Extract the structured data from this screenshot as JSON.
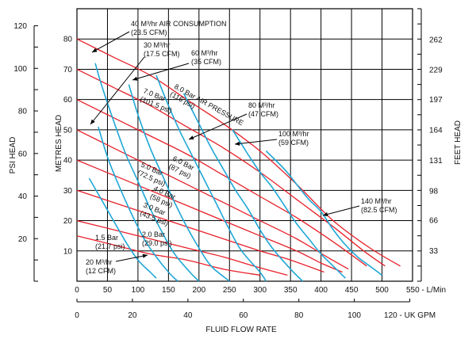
{
  "chart_data": {
    "type": "line",
    "title": "",
    "xlabel": "FLUID FLOW RATE",
    "ylabel_left_outer": "PSI HEAD",
    "ylabel_left_inner": "METRES HEAD",
    "ylabel_right": "FEET HEAD",
    "x_primary": {
      "ticks": [
        "0",
        "50",
        "100",
        "150",
        "200",
        "250",
        "300",
        "350",
        "400",
        "450",
        "500",
        "550 - L/Min"
      ],
      "range": [
        0,
        550
      ]
    },
    "x_secondary": {
      "ticks": [
        "0",
        "20",
        "40",
        "60",
        "80",
        "100",
        "120 - UK GPM"
      ],
      "values": [
        0,
        20,
        40,
        60,
        80,
        100,
        120
      ]
    },
    "y_metres": {
      "ticks": [
        "10",
        "20",
        "30",
        "40",
        "50",
        "60",
        "70",
        "80"
      ],
      "range": [
        0,
        90
      ]
    },
    "y_psi": {
      "ticks": [
        "20",
        "40",
        "60",
        "80",
        "100",
        "120"
      ],
      "values": [
        20,
        40,
        60,
        80,
        100,
        120
      ]
    },
    "y_feet": {
      "ticks": [
        "33",
        "66",
        "98",
        "131",
        "164",
        "197",
        "229",
        "262"
      ],
      "values": [
        33,
        66,
        98,
        131,
        164,
        197,
        229,
        262
      ]
    },
    "grid": true,
    "pressure_color": "#e8202a",
    "air_color": "#1fa7d6",
    "pressure_series": [
      {
        "points": [
          [
            0,
            80
          ],
          [
            60,
            74
          ],
          [
            120,
            68
          ],
          [
            180,
            60
          ],
          [
            240,
            52
          ],
          [
            300,
            43
          ],
          [
            360,
            32
          ],
          [
            420,
            20
          ],
          [
            480,
            11
          ],
          [
            530,
            5
          ]
        ]
      },
      {
        "points": [
          [
            0,
            70
          ],
          [
            60,
            64
          ],
          [
            120,
            58
          ],
          [
            180,
            51
          ],
          [
            240,
            44
          ],
          [
            300,
            36
          ],
          [
            360,
            27
          ],
          [
            420,
            18
          ],
          [
            470,
            10
          ],
          [
            505,
            5
          ]
        ]
      },
      {
        "points": [
          [
            0,
            60
          ],
          [
            60,
            54
          ],
          [
            120,
            48
          ],
          [
            180,
            42
          ],
          [
            240,
            35
          ],
          [
            300,
            28
          ],
          [
            360,
            21
          ],
          [
            420,
            13
          ],
          [
            475,
            5
          ]
        ]
      },
      {
        "points": [
          [
            0,
            50
          ],
          [
            60,
            44
          ],
          [
            120,
            38
          ],
          [
            180,
            32
          ],
          [
            240,
            26
          ],
          [
            300,
            20
          ],
          [
            360,
            14
          ],
          [
            410,
            8
          ],
          [
            445,
            4
          ]
        ]
      },
      {
        "points": [
          [
            0,
            40
          ],
          [
            60,
            35
          ],
          [
            120,
            30
          ],
          [
            180,
            25
          ],
          [
            240,
            20
          ],
          [
            300,
            15
          ],
          [
            360,
            10
          ],
          [
            400,
            6
          ],
          [
            435,
            3
          ]
        ]
      },
      {
        "points": [
          [
            0,
            30
          ],
          [
            60,
            26
          ],
          [
            120,
            22
          ],
          [
            180,
            18
          ],
          [
            240,
            14
          ],
          [
            300,
            10
          ],
          [
            350,
            7
          ],
          [
            405,
            3
          ]
        ]
      },
      {
        "points": [
          [
            0,
            20
          ],
          [
            60,
            17
          ],
          [
            120,
            14
          ],
          [
            180,
            11
          ],
          [
            240,
            8
          ],
          [
            290,
            5
          ],
          [
            345,
            2
          ]
        ]
      },
      {
        "points": [
          [
            0,
            15
          ],
          [
            60,
            12
          ],
          [
            120,
            9
          ],
          [
            180,
            7
          ],
          [
            240,
            4
          ],
          [
            300,
            2
          ]
        ]
      }
    ],
    "air_series": [
      {
        "points": [
          [
            20,
            34
          ],
          [
            40,
            27
          ],
          [
            60,
            20
          ],
          [
            80,
            13
          ],
          [
            100,
            7
          ],
          [
            120,
            3
          ],
          [
            130,
            1
          ]
        ]
      },
      {
        "points": [
          [
            35,
            51
          ],
          [
            50,
            41
          ],
          [
            70,
            31
          ],
          [
            90,
            22
          ],
          [
            110,
            14
          ],
          [
            130,
            8
          ],
          [
            150,
            3
          ],
          [
            165,
            0
          ]
        ]
      },
      {
        "points": [
          [
            30,
            72
          ],
          [
            40,
            65
          ],
          [
            60,
            53
          ],
          [
            80,
            42
          ],
          [
            100,
            33
          ],
          [
            120,
            24
          ],
          [
            140,
            16
          ],
          [
            160,
            9
          ],
          [
            185,
            3
          ],
          [
            200,
            0
          ]
        ]
      },
      {
        "points": [
          [
            85,
            65
          ],
          [
            100,
            55
          ],
          [
            120,
            44
          ],
          [
            140,
            35
          ],
          [
            160,
            26
          ],
          [
            180,
            18
          ],
          [
            200,
            11
          ],
          [
            220,
            5
          ],
          [
            250,
            0
          ]
        ]
      },
      {
        "points": [
          [
            130,
            68
          ],
          [
            150,
            58
          ],
          [
            170,
            49
          ],
          [
            190,
            41
          ],
          [
            210,
            33
          ],
          [
            230,
            25
          ],
          [
            250,
            17
          ],
          [
            270,
            10
          ],
          [
            300,
            3
          ],
          [
            310,
            0
          ]
        ]
      },
      {
        "points": [
          [
            175,
            62
          ],
          [
            200,
            52
          ],
          [
            220,
            44
          ],
          [
            240,
            37
          ],
          [
            260,
            30
          ],
          [
            280,
            24
          ],
          [
            300,
            17
          ],
          [
            320,
            11
          ],
          [
            350,
            4
          ],
          [
            370,
            0
          ]
        ]
      },
      {
        "points": [
          [
            255,
            50
          ],
          [
            280,
            42
          ],
          [
            300,
            36
          ],
          [
            320,
            31
          ],
          [
            340,
            25
          ],
          [
            360,
            19
          ],
          [
            380,
            14
          ],
          [
            400,
            9
          ],
          [
            420,
            5
          ],
          [
            440,
            1
          ]
        ]
      },
      {
        "points": [
          [
            310,
            43
          ],
          [
            340,
            37
          ],
          [
            360,
            32
          ],
          [
            380,
            27
          ],
          [
            400,
            23
          ],
          [
            420,
            17
          ],
          [
            440,
            12
          ],
          [
            460,
            8
          ],
          [
            480,
            5
          ],
          [
            500,
            2
          ]
        ]
      }
    ],
    "annotations": [
      {
        "id": "air40",
        "lines": [
          "40 M³/hr AIR CONSUMPTION",
          "(23.5 CFM)"
        ]
      },
      {
        "id": "air30",
        "lines": [
          "30 M³/hr",
          "(17.5 CFM)"
        ]
      },
      {
        "id": "air60",
        "lines": [
          "60 M³/hr",
          "(35 CFM)"
        ]
      },
      {
        "id": "bar8",
        "lines": [
          "8.0 Bar AIR PRESSURE",
          "(116 psi)"
        ]
      },
      {
        "id": "bar7",
        "lines": [
          "7.0 Bar",
          "(101.5 psi)"
        ]
      },
      {
        "id": "air80",
        "lines": [
          "80 M³/hr",
          "(47 CFM)"
        ]
      },
      {
        "id": "air100",
        "lines": [
          "100 M³/hr",
          "(59 CFM)"
        ]
      },
      {
        "id": "bar6",
        "lines": [
          "6.0 Bar",
          "(87 psi)"
        ]
      },
      {
        "id": "bar5",
        "lines": [
          "5.0 Bar",
          "(72.5 psi)"
        ]
      },
      {
        "id": "bar4",
        "lines": [
          "4.0 Bar",
          "(58 psi)"
        ]
      },
      {
        "id": "bar3",
        "lines": [
          "3.0 Bar",
          "(43.5 psi)"
        ]
      },
      {
        "id": "air140",
        "lines": [
          "140 M³/hr",
          "(82.5 CFM)"
        ]
      },
      {
        "id": "bar2",
        "lines": [
          "2.0 Bar",
          "(29.0 psi)"
        ]
      },
      {
        "id": "bar15",
        "lines": [
          "1.5 Bar",
          "(21.7 psi)"
        ]
      },
      {
        "id": "air20",
        "lines": [
          "20 M³/hr",
          "(12 CFM)"
        ]
      }
    ]
  }
}
